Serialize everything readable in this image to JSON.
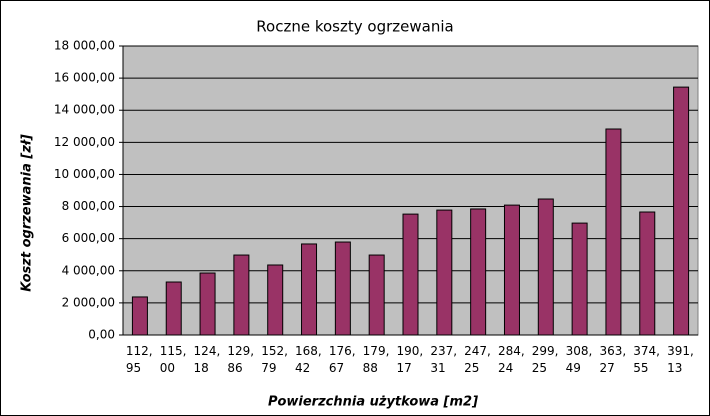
{
  "chart_data": {
    "type": "bar",
    "title": "Roczne koszty ogrzewania",
    "x_label": "Powierzchnia użytkowa [m2]",
    "y_label": "Koszt ogrzewania [zł]",
    "categories": [
      "112, 95",
      "115, 00",
      "124, 18",
      "129, 86",
      "152, 79",
      "168, 42",
      "176, 67",
      "179, 88",
      "190, 17",
      "237, 31",
      "247, 25",
      "284, 24",
      "299, 25",
      "308, 49",
      "363, 27",
      "374, 55",
      "391, 13"
    ],
    "values": [
      2370,
      3300,
      3860,
      4980,
      4360,
      5670,
      5790,
      4980,
      7530,
      7780,
      7850,
      8090,
      8470,
      6970,
      12830,
      7660,
      15440
    ],
    "color": "#993366",
    "ylim": [
      0,
      18000
    ],
    "yticks": [
      {
        "value": 0,
        "label": "0,00"
      },
      {
        "value": 2000,
        "label": "2 000,00"
      },
      {
        "value": 4000,
        "label": "4 000,00"
      },
      {
        "value": 6000,
        "label": "6 000,00"
      },
      {
        "value": 8000,
        "label": "8 000,00"
      },
      {
        "value": 10000,
        "label": "10 000,00"
      },
      {
        "value": 12000,
        "label": "12 000,00"
      },
      {
        "value": 14000,
        "label": "14 000,00"
      },
      {
        "value": 16000,
        "label": "16 000,00"
      },
      {
        "value": 18000,
        "label": "18 000,00"
      }
    ],
    "grid": true
  }
}
